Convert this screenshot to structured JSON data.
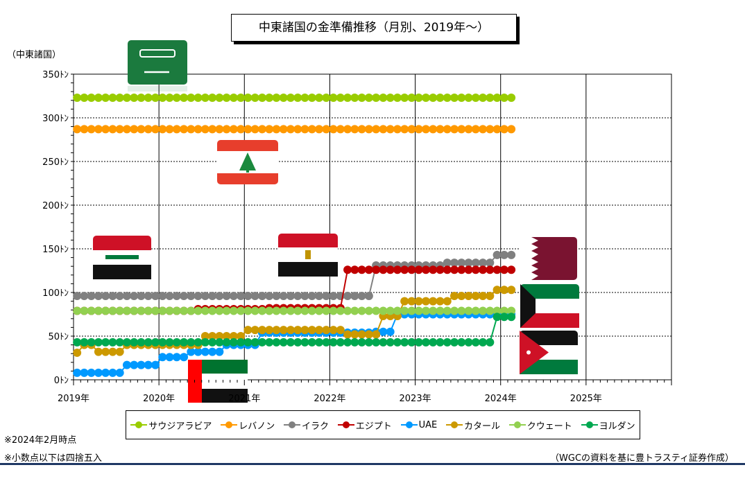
{
  "chart_data": {
    "type": "line",
    "title": "中東諸国の金準備推移（月別、2019年～）",
    "ylabel": "（中東諸国）",
    "y_ticks": [
      "0ﾄﾝ",
      "50ﾄﾝ",
      "100ﾄﾝ",
      "150ﾄﾝ",
      "200ﾄﾝ",
      "250ﾄﾝ",
      "300ﾄﾝ",
      "350ﾄﾝ"
    ],
    "x_ticks": [
      "2019年",
      "2020年",
      "2021年",
      "2022年",
      "2023年",
      "2024年",
      "2025年"
    ],
    "x_range": [
      "2019-01",
      "2025-12"
    ],
    "ylim": [
      0,
      350
    ],
    "grid": true,
    "legend_position": "bottom",
    "series": [
      {
        "name": "サウジアラビア",
        "color": "#99cc00",
        "segments": [
          [
            "2019-01",
            "2024-02",
            323
          ]
        ]
      },
      {
        "name": "レバノン",
        "color": "#ff9900",
        "segments": [
          [
            "2019-01",
            "2024-02",
            287
          ]
        ]
      },
      {
        "name": "イラク",
        "color": "#808080",
        "segments": [
          [
            "2019-01",
            "2022-06",
            96
          ],
          [
            "2022-07",
            "2023-04",
            131
          ],
          [
            "2023-05",
            "2023-11",
            134
          ],
          [
            "2023-12",
            "2024-02",
            143
          ]
        ]
      },
      {
        "name": "エジプト",
        "color": "#c00000",
        "segments": [
          [
            "2019-01",
            "2020-05",
            79
          ],
          [
            "2020-06",
            "2021-03",
            81
          ],
          [
            "2021-04",
            "2022-02",
            82
          ],
          [
            "2022-03",
            "2024-02",
            126
          ]
        ]
      },
      {
        "name": "UAE",
        "color": "#0099ff",
        "segments": [
          [
            "2019-01",
            "2019-07",
            8
          ],
          [
            "2019-08",
            "2019-12",
            17
          ],
          [
            "2020-01",
            "2020-04",
            26
          ],
          [
            "2020-05",
            "2020-09",
            32
          ],
          [
            "2020-10",
            "2021-02",
            40
          ],
          [
            "2021-03",
            "2022-06",
            54
          ],
          [
            "2022-07",
            "2022-09",
            55
          ],
          [
            "2022-10",
            "2024-02",
            75
          ]
        ]
      },
      {
        "name": "カタール",
        "color": "#cc9900",
        "segments": [
          [
            "2019-01",
            "2019-01",
            31
          ],
          [
            "2019-02",
            "2019-03",
            40
          ],
          [
            "2019-04",
            "2019-07",
            32
          ],
          [
            "2019-08",
            "2020-06",
            40
          ],
          [
            "2020-07",
            "2020-12",
            50
          ],
          [
            "2021-01",
            "2022-02",
            57
          ],
          [
            "2022-03",
            "2022-07",
            52
          ],
          [
            "2022-08",
            "2022-10",
            73
          ],
          [
            "2022-11",
            "2023-05",
            90
          ],
          [
            "2023-06",
            "2023-11",
            96
          ],
          [
            "2023-12",
            "2024-02",
            103
          ]
        ]
      },
      {
        "name": "クウェート",
        "color": "#92d050",
        "segments": [
          [
            "2019-01",
            "2024-02",
            79
          ]
        ]
      },
      {
        "name": "ヨルダン",
        "color": "#00a850",
        "segments": [
          [
            "2019-01",
            "2023-11",
            43
          ],
          [
            "2023-12",
            "2024-02",
            72
          ]
        ]
      }
    ]
  },
  "notes": {
    "line1": "※2024年2月時点",
    "line2": "※小数点以下は四捨五入"
  },
  "source": "（WGCの資料を基に豊トラスティ証券作成）",
  "flags": [
    {
      "country": "saudi-arabia",
      "icon": "saudi-flag-icon",
      "color": "#1b7a3e"
    },
    {
      "country": "lebanon",
      "icon": "lebanon-flag-icon",
      "color": "#e73e2c"
    },
    {
      "country": "iraq",
      "icon": "iraq-flag-icon",
      "color": "#ce1126"
    },
    {
      "country": "egypt",
      "icon": "egypt-flag-icon",
      "color": "#ce1126"
    },
    {
      "country": "uae",
      "icon": "uae-flag-icon",
      "color": "#00732f"
    },
    {
      "country": "qatar",
      "icon": "qatar-flag-icon",
      "color": "#7a1330"
    },
    {
      "country": "kuwait",
      "icon": "kuwait-flag-icon",
      "color": "#007a3d"
    },
    {
      "country": "jordan",
      "icon": "jordan-flag-icon",
      "color": "#007a3d"
    }
  ]
}
